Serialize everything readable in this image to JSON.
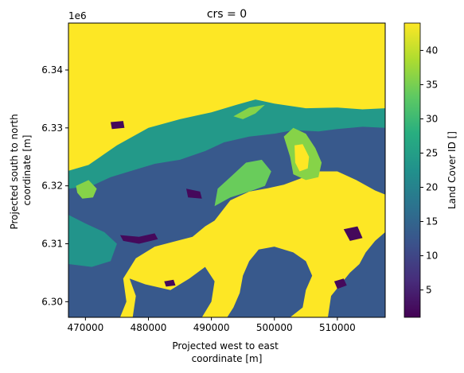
{
  "chart_data": {
    "type": "heatmap",
    "title": "crs = 0",
    "xlabel_lines": [
      "Projected west to east",
      "coordinate [m]"
    ],
    "ylabel_lines": [
      "Projected south to north",
      "coordinate [m]"
    ],
    "y_offset_label": "1e6",
    "colorbar_label": "Land Cover ID []",
    "xlim": [
      467300,
      517600
    ],
    "ylim": [
      6.2973,
      6.3481
    ],
    "x_ticks": [
      470000,
      480000,
      490000,
      500000,
      510000
    ],
    "x_tick_labels": [
      "470000",
      "480000",
      "490000",
      "500000",
      "510000"
    ],
    "y_ticks": [
      6.3,
      6.31,
      6.32,
      6.33,
      6.34
    ],
    "y_tick_labels": [
      "6.30",
      "6.31",
      "6.32",
      "6.33",
      "6.34"
    ],
    "color_range": [
      1,
      44
    ],
    "colorbar_ticks": [
      5,
      10,
      15,
      20,
      25,
      30,
      35,
      40
    ],
    "colorbar_tick_labels": [
      "5",
      "10",
      "15",
      "20",
      "25",
      "30",
      "35",
      "40"
    ],
    "colormap": "viridis",
    "regions": [
      {
        "name": "background",
        "value": 44,
        "polygon": [
          [
            467300,
            6.3481
          ],
          [
            517600,
            6.3481
          ],
          [
            517600,
            6.2973
          ],
          [
            467300,
            6.2973
          ]
        ]
      },
      {
        "name": "north-coastal-band",
        "value": 24,
        "polygon": [
          [
            467300,
            6.3226
          ],
          [
            470500,
            6.3236
          ],
          [
            475000,
            6.327
          ],
          [
            480000,
            6.33
          ],
          [
            485000,
            6.3315
          ],
          [
            490000,
            6.3327
          ],
          [
            494000,
            6.334
          ],
          [
            497000,
            6.3349
          ],
          [
            500000,
            6.3342
          ],
          [
            505000,
            6.3334
          ],
          [
            510000,
            6.3335
          ],
          [
            514000,
            6.3332
          ],
          [
            517600,
            6.3334
          ],
          [
            517600,
            6.2973
          ],
          [
            467300,
            6.2973
          ]
        ]
      },
      {
        "name": "inland-dark",
        "value": 13,
        "polygon": [
          [
            467300,
            6.3195
          ],
          [
            471000,
            6.32
          ],
          [
            474000,
            6.3215
          ],
          [
            477000,
            6.3225
          ],
          [
            481000,
            6.3238
          ],
          [
            485000,
            6.3245
          ],
          [
            489000,
            6.326
          ],
          [
            492000,
            6.3275
          ],
          [
            496000,
            6.3285
          ],
          [
            500000,
            6.329
          ],
          [
            503000,
            6.3296
          ],
          [
            507000,
            6.3294
          ],
          [
            510000,
            6.3298
          ],
          [
            514000,
            6.3302
          ],
          [
            517600,
            6.33
          ],
          [
            517600,
            6.2973
          ],
          [
            467300,
            6.2973
          ]
        ]
      },
      {
        "name": "west-green-patch",
        "value": 23,
        "polygon": [
          [
            467300,
            6.315
          ],
          [
            470000,
            6.3135
          ],
          [
            473000,
            6.312
          ],
          [
            475000,
            6.31
          ],
          [
            474000,
            6.307
          ],
          [
            471000,
            6.306
          ],
          [
            467300,
            6.3065
          ]
        ]
      },
      {
        "name": "central-bright-lake",
        "value": 44,
        "polygon": [
          [
            475500,
            6.2973
          ],
          [
            476500,
            6.3
          ],
          [
            476000,
            6.304
          ],
          [
            478000,
            6.3075
          ],
          [
            481000,
            6.3095
          ],
          [
            484500,
            6.3105
          ],
          [
            487000,
            6.3112
          ],
          [
            489000,
            6.313
          ],
          [
            490500,
            6.314
          ],
          [
            493000,
            6.3175
          ],
          [
            496000,
            6.319
          ],
          [
            499000,
            6.3196
          ],
          [
            501500,
            6.3202
          ],
          [
            504000,
            6.3212
          ],
          [
            507000,
            6.3225
          ],
          [
            510000,
            6.3225
          ],
          [
            513000,
            6.321
          ],
          [
            516000,
            6.3192
          ],
          [
            517600,
            6.3185
          ],
          [
            517600,
            6.312
          ],
          [
            516000,
            6.3105
          ],
          [
            514500,
            6.3085
          ],
          [
            513500,
            6.3065
          ],
          [
            512000,
            6.305
          ],
          [
            510500,
            6.303
          ],
          [
            509000,
            6.301
          ],
          [
            508500,
            6.2973
          ]
        ]
      },
      {
        "name": "south-east-lobe",
        "value": 13,
        "polygon": [
          [
            502500,
            6.2973
          ],
          [
            504500,
            6.299
          ],
          [
            505000,
            6.302
          ],
          [
            506000,
            6.3045
          ],
          [
            505000,
            6.307
          ],
          [
            503000,
            6.3085
          ],
          [
            500000,
            6.3095
          ],
          [
            497500,
            6.309
          ],
          [
            496000,
            6.307
          ],
          [
            495000,
            6.3045
          ],
          [
            494500,
            6.3015
          ],
          [
            493500,
            6.299
          ],
          [
            492500,
            6.2973
          ]
        ]
      },
      {
        "name": "south-west-land",
        "value": 13,
        "polygon": [
          [
            477500,
            6.2973
          ],
          [
            478000,
            6.301
          ],
          [
            477000,
            6.304
          ],
          [
            479500,
            6.303
          ],
          [
            483500,
            6.302
          ],
          [
            486500,
            6.304
          ],
          [
            489000,
            6.306
          ],
          [
            490500,
            6.3035
          ],
          [
            490000,
            6.3
          ],
          [
            488500,
            6.2973
          ]
        ]
      },
      {
        "name": "east-dark-lobe",
        "value": 13,
        "polygon": [
          [
            517600,
            6.2973
          ],
          [
            514000,
            6.2973
          ],
          [
            513000,
            6.2995
          ],
          [
            513500,
            6.3025
          ],
          [
            515000,
            6.306
          ],
          [
            516500,
            6.309
          ],
          [
            517600,
            6.31
          ]
        ]
      },
      {
        "name": "spit-lightgreen",
        "value": 36,
        "polygon": [
          [
            501500,
            6.3285
          ],
          [
            503000,
            6.33
          ],
          [
            505000,
            6.329
          ],
          [
            506500,
            6.3265
          ],
          [
            507500,
            6.324
          ],
          [
            507000,
            6.3215
          ],
          [
            505000,
            6.321
          ],
          [
            503000,
            6.322
          ],
          [
            502500,
            6.325
          ]
        ]
      },
      {
        "name": "spit-inner-yellow",
        "value": 44,
        "polygon": [
          [
            503200,
            6.327
          ],
          [
            504500,
            6.3272
          ],
          [
            505500,
            6.325
          ],
          [
            505300,
            6.323
          ],
          [
            504000,
            6.3225
          ],
          [
            503300,
            6.324
          ]
        ]
      },
      {
        "name": "neck-lightgreen",
        "value": 34,
        "polygon": [
          [
            490500,
            6.3165
          ],
          [
            493000,
            6.318
          ],
          [
            496500,
            6.3192
          ],
          [
            498500,
            6.32
          ],
          [
            499500,
            6.3225
          ],
          [
            498000,
            6.3245
          ],
          [
            495500,
            6.324
          ],
          [
            493000,
            6.3215
          ],
          [
            491000,
            6.3195
          ]
        ]
      },
      {
        "name": "west-lightgreen-blob",
        "value": 36,
        "polygon": [
          [
            468500,
            6.32
          ],
          [
            470500,
            6.321
          ],
          [
            471800,
            6.3195
          ],
          [
            471200,
            6.318
          ],
          [
            469500,
            6.3178
          ],
          [
            468700,
            6.3188
          ]
        ]
      },
      {
        "name": "north-lightgreen-sliver",
        "value": 36,
        "polygon": [
          [
            493500,
            6.332
          ],
          [
            496000,
            6.3335
          ],
          [
            498500,
            6.334
          ],
          [
            497000,
            6.3325
          ],
          [
            495000,
            6.3315
          ]
        ]
      },
      {
        "name": "dark-patch-1",
        "value": 2,
        "polygon": [
          [
            475500,
            6.3115
          ],
          [
            478500,
            6.3112
          ],
          [
            481000,
            6.3118
          ],
          [
            481500,
            6.3108
          ],
          [
            478500,
            6.31
          ],
          [
            476000,
            6.3105
          ]
        ]
      },
      {
        "name": "dark-patch-2",
        "value": 2,
        "polygon": [
          [
            486000,
            6.3195
          ],
          [
            488200,
            6.319
          ],
          [
            488500,
            6.3178
          ],
          [
            486300,
            6.318
          ]
        ]
      },
      {
        "name": "dark-patch-3",
        "value": 2,
        "polygon": [
          [
            511000,
            6.3125
          ],
          [
            513200,
            6.313
          ],
          [
            514000,
            6.311
          ],
          [
            512000,
            6.3105
          ]
        ]
      },
      {
        "name": "dark-patch-4",
        "value": 2,
        "polygon": [
          [
            482500,
            6.3035
          ],
          [
            484000,
            6.3038
          ],
          [
            484300,
            6.3028
          ],
          [
            482800,
            6.3026
          ]
        ]
      },
      {
        "name": "dark-patch-5",
        "value": 2,
        "polygon": [
          [
            474000,
            6.331
          ],
          [
            476000,
            6.3312
          ],
          [
            476200,
            6.33
          ],
          [
            474200,
            6.3298
          ]
        ]
      },
      {
        "name": "dark-patch-6",
        "value": 2,
        "polygon": [
          [
            509500,
            6.3035
          ],
          [
            511000,
            6.304
          ],
          [
            511500,
            6.3028
          ],
          [
            510000,
            6.3022
          ]
        ]
      }
    ]
  }
}
